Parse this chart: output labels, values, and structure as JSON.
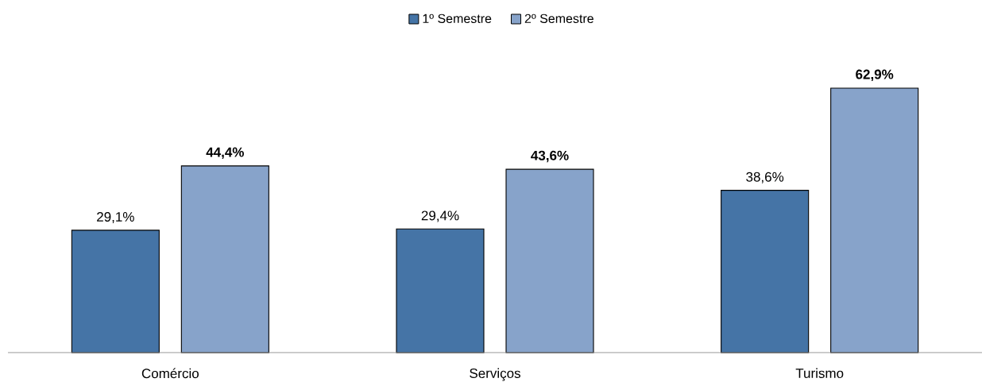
{
  "chart_data": {
    "type": "bar",
    "categories": [
      "Comércio",
      "Serviços",
      "Turismo"
    ],
    "series": [
      {
        "name": "1º Semestre",
        "color": "#4574a6",
        "values": [
          29.1,
          29.4,
          38.6
        ],
        "value_labels": [
          "29,1%",
          "29,4%",
          "38,6%"
        ]
      },
      {
        "name": "2º Semestre",
        "color": "#87a3ca",
        "values": [
          44.4,
          43.6,
          62.9
        ],
        "value_labels": [
          "44,4%",
          "43,6%",
          "62,9%"
        ]
      }
    ],
    "legend": "top"
  }
}
